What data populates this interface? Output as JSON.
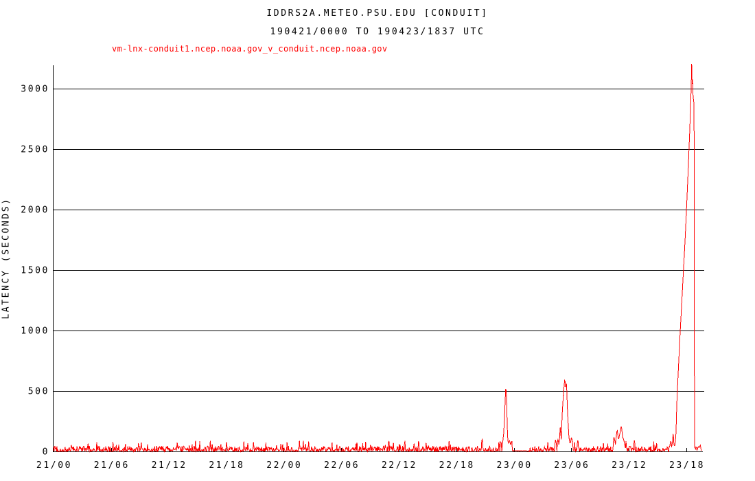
{
  "chart": {
    "title": "IDDRS2A.METEO.PSU.EDU [CONDUIT]",
    "subtitle": "190421/0000 TO 190423/1837 UTC",
    "series_label": "vm-lnx-conduit1.ncep.noaa.gov_v_conduit.ncep.noaa.gov",
    "ylabel": "LATENCY (SECONDS)"
  },
  "chart_data": {
    "type": "line",
    "title": "IDDRS2A.METEO.PSU.EDU [CONDUIT]",
    "subtitle": "190421/0000 TO 190423/1837 UTC",
    "xlabel": "",
    "ylabel": "LATENCY (SECONDS)",
    "legend_position": "top-left",
    "grid": "horizontal",
    "ylim": [
      0,
      3200
    ],
    "y_ticks": [
      0,
      500,
      1000,
      1500,
      2000,
      2500,
      3000
    ],
    "x_ticks": [
      {
        "label": "21/00",
        "t": 0
      },
      {
        "label": "21/06",
        "t": 6
      },
      {
        "label": "21/12",
        "t": 12
      },
      {
        "label": "21/18",
        "t": 18
      },
      {
        "label": "22/00",
        "t": 24
      },
      {
        "label": "22/06",
        "t": 30
      },
      {
        "label": "22/12",
        "t": 36
      },
      {
        "label": "22/18",
        "t": 42
      },
      {
        "label": "23/00",
        "t": 48
      },
      {
        "label": "23/06",
        "t": 54
      },
      {
        "label": "23/12",
        "t": 60
      },
      {
        "label": "23/18",
        "t": 66
      }
    ],
    "t_range_hours": [
      0,
      67.55
    ],
    "colors": {
      "series": "#ff0000",
      "axis": "#000000",
      "text": "#000000",
      "background": "#ffffff"
    },
    "notable_spikes": [
      {
        "near": "23/00",
        "peak_seconds": 550
      },
      {
        "near": "23/05",
        "peak_seconds": 605
      },
      {
        "near": "23/11",
        "peak_seconds": 215
      },
      {
        "near": "23/17-23/18",
        "peak_seconds": 3205
      }
    ],
    "series": [
      {
        "name": "vm-lnx-conduit1.ncep.noaa.gov_v_conduit.ncep.noaa.gov",
        "unit": "seconds",
        "baseline_noise": {
          "min": 0,
          "typical_max": 45,
          "burst_max": 90,
          "until_hour": 64.2
        },
        "anchor_points": [
          [
            0,
            15
          ],
          [
            44.5,
            15
          ],
          [
            44.62,
            60
          ],
          [
            44.7,
            105
          ],
          [
            44.78,
            45
          ],
          [
            44.9,
            15
          ],
          [
            46.5,
            15
          ],
          [
            46.65,
            80
          ],
          [
            46.78,
            35
          ],
          [
            46.95,
            150
          ],
          [
            47.05,
            320
          ],
          [
            47.17,
            550
          ],
          [
            47.26,
            430
          ],
          [
            47.33,
            150
          ],
          [
            47.42,
            60
          ],
          [
            47.55,
            90
          ],
          [
            47.68,
            50
          ],
          [
            47.8,
            85
          ],
          [
            47.9,
            8
          ],
          [
            48.0,
            3
          ],
          [
            49.6,
            3
          ],
          [
            49.75,
            15
          ],
          [
            52.2,
            15
          ],
          [
            52.35,
            95
          ],
          [
            52.5,
            45
          ],
          [
            52.62,
            105
          ],
          [
            52.72,
            50
          ],
          [
            52.85,
            200
          ],
          [
            52.95,
            100
          ],
          [
            53.05,
            310
          ],
          [
            53.18,
            480
          ],
          [
            53.32,
            605
          ],
          [
            53.42,
            520
          ],
          [
            53.5,
            560
          ],
          [
            53.62,
            300
          ],
          [
            53.75,
            120
          ],
          [
            53.88,
            60
          ],
          [
            54.02,
            120
          ],
          [
            54.15,
            60
          ],
          [
            54.3,
            15
          ],
          [
            58.3,
            15
          ],
          [
            58.45,
            120
          ],
          [
            58.6,
            60
          ],
          [
            58.78,
            185
          ],
          [
            58.92,
            95
          ],
          [
            59.1,
            160
          ],
          [
            59.22,
            215
          ],
          [
            59.35,
            120
          ],
          [
            59.48,
            95
          ],
          [
            59.62,
            40
          ],
          [
            59.8,
            15
          ],
          [
            64.2,
            15
          ],
          [
            64.3,
            60
          ],
          [
            64.38,
            100
          ],
          [
            64.45,
            30
          ],
          [
            64.55,
            80
          ],
          [
            64.62,
            170
          ],
          [
            64.7,
            60
          ],
          [
            64.78,
            40
          ],
          [
            64.85,
            90
          ],
          [
            64.92,
            150
          ],
          [
            64.97,
            310
          ],
          [
            65.02,
            430
          ],
          [
            65.3,
            900
          ],
          [
            65.6,
            1350
          ],
          [
            65.9,
            1800
          ],
          [
            66.15,
            2250
          ],
          [
            66.35,
            2650
          ],
          [
            66.5,
            3000
          ],
          [
            66.55,
            3205
          ],
          [
            66.6,
            3040
          ],
          [
            66.64,
            3120
          ],
          [
            66.68,
            2950
          ],
          [
            66.8,
            2870
          ],
          [
            66.84,
            40
          ],
          [
            66.95,
            20
          ],
          [
            67.02,
            45
          ],
          [
            67.1,
            8
          ],
          [
            67.22,
            40
          ],
          [
            67.32,
            30
          ],
          [
            67.45,
            55
          ],
          [
            67.55,
            2
          ]
        ]
      }
    ]
  }
}
